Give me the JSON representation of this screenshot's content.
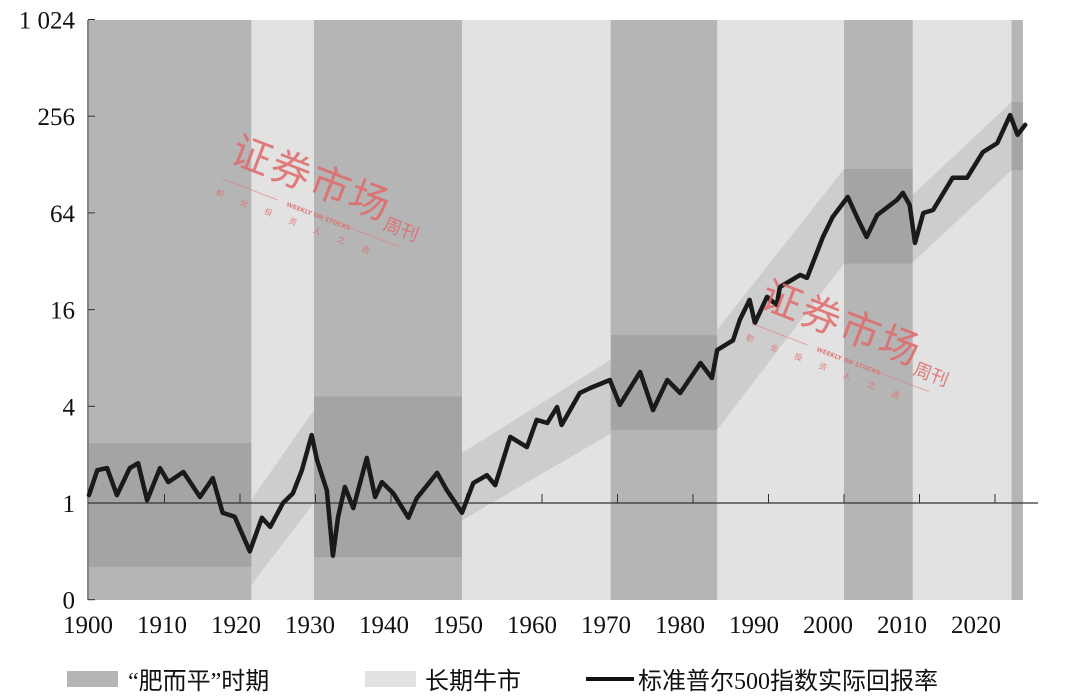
{
  "chart_data": {
    "type": "line",
    "y_scale": "log2",
    "xlim": [
      1900,
      2024
    ],
    "y_ticks": [
      {
        "value": 1024,
        "label": "1 024"
      },
      {
        "value": 256,
        "label": "256"
      },
      {
        "value": 64,
        "label": "64"
      },
      {
        "value": 16,
        "label": "16"
      },
      {
        "value": 4,
        "label": "4"
      },
      {
        "value": 1,
        "label": "1"
      },
      {
        "value": 0.25,
        "label": "0"
      }
    ],
    "x_ticks": [
      "1900",
      "1910",
      "1920",
      "1930",
      "1940",
      "1950",
      "1960",
      "1970",
      "1980",
      "1990",
      "2000",
      "2010",
      "2020"
    ],
    "reference_line": 1,
    "colors": {
      "fat_flat": "#b5b5b5",
      "bull": "#e2e2e2",
      "channel": "#000000",
      "line": "#1a1a1a",
      "watermark": "#e06a6a"
    },
    "fat_flat_periods": [
      [
        1900,
        1921.5
      ],
      [
        1929.8,
        1949.4
      ],
      [
        1969.1,
        1983.2
      ],
      [
        2000,
        2009.1
      ],
      [
        2022.2,
        2023.7
      ]
    ],
    "bull_periods": [
      [
        1921.5,
        1929.8
      ],
      [
        1949.4,
        1969.1
      ],
      [
        1983.2,
        2000
      ],
      [
        2009.1,
        2022.2
      ]
    ],
    "channels": [
      {
        "start": 1900,
        "end": 1921.5,
        "start_range": [
          0.4,
          2.36
        ],
        "end_range": [
          0.4,
          2.36
        ]
      },
      {
        "start": 1921.5,
        "end": 1929.8,
        "start_range": [
          0.31,
          1.05
        ],
        "end_range": [
          1.0,
          3.8
        ]
      },
      {
        "start": 1929.8,
        "end": 1949.4,
        "start_range": [
          0.46,
          4.6
        ],
        "end_range": [
          0.46,
          4.6
        ]
      },
      {
        "start": 1949.4,
        "end": 1969.1,
        "start_range": [
          0.78,
          2.05
        ],
        "end_range": [
          2.7,
          7.8
        ]
      },
      {
        "start": 1969.1,
        "end": 1983.2,
        "start_range": [
          2.85,
          11.1
        ],
        "end_range": [
          2.85,
          11.1
        ]
      },
      {
        "start": 1983.2,
        "end": 2000,
        "start_range": [
          2.85,
          12
        ],
        "end_range": [
          31,
          120
        ]
      },
      {
        "start": 2000,
        "end": 2009.1,
        "start_range": [
          31,
          120
        ],
        "end_range": [
          31,
          120
        ]
      },
      {
        "start": 2009.1,
        "end": 2022.2,
        "start_range": [
          31.5,
          83
        ],
        "end_range": [
          118,
          314
        ]
      },
      {
        "start": 2022.2,
        "end": 2023.7,
        "start_range": [
          118,
          314
        ],
        "end_range": [
          118,
          314
        ]
      }
    ],
    "series": [
      {
        "name": "标准普尔500指数实际回报率",
        "x": [
          1900,
          1901.1,
          1902.4,
          1903.7,
          1905.4,
          1906.5,
          1907.7,
          1909.4,
          1910.5,
          1912.5,
          1914.7,
          1916.4,
          1917.7,
          1919.3,
          1921.3,
          1922.9,
          1924.0,
          1925.7,
          1927.0,
          1928.2,
          1929.5,
          1930.2,
          1931.5,
          1932.3,
          1933.0,
          1933.9,
          1935.0,
          1936.8,
          1937.9,
          1938.8,
          1940.3,
          1942.3,
          1943.4,
          1946.1,
          1947.4,
          1949.4,
          1950.9,
          1952.7,
          1953.8,
          1955.8,
          1958.0,
          1959.3,
          1960.7,
          1962.0,
          1962.6,
          1965.0,
          1966.4,
          1969.0,
          1970.3,
          1973.0,
          1974.7,
          1976.6,
          1978.3,
          1981.0,
          1982.5,
          1983.2,
          1985.3,
          1986.2,
          1987.5,
          1988.2,
          1989.8,
          1991.1,
          1991.5,
          1994.2,
          1995.1,
          1997.2,
          1998.5,
          2000.5,
          2001.9,
          2003.0,
          2004.4,
          2007.0,
          2007.8,
          2008.7,
          2009.4,
          2010.5,
          2011.8,
          2014.4,
          2016.3,
          2018.4,
          2020.3,
          2022.0,
          2023.0,
          2024.0
        ],
        "y": [
          1.12,
          1.6,
          1.65,
          1.12,
          1.65,
          1.77,
          1.04,
          1.65,
          1.35,
          1.56,
          1.09,
          1.43,
          0.87,
          0.82,
          0.5,
          0.81,
          0.71,
          1.0,
          1.15,
          1.6,
          2.65,
          1.85,
          1.2,
          0.47,
          0.82,
          1.26,
          0.93,
          1.91,
          1.09,
          1.35,
          1.15,
          0.81,
          1.07,
          1.54,
          1.2,
          0.87,
          1.33,
          1.49,
          1.29,
          2.58,
          2.23,
          3.29,
          3.15,
          3.96,
          3.06,
          4.84,
          5.2,
          5.83,
          4.08,
          6.54,
          3.79,
          5.83,
          4.84,
          7.44,
          6.0,
          8.97,
          10.3,
          13.8,
          18.4,
          13.2,
          19.2,
          17.1,
          22.1,
          26.3,
          25.2,
          45.3,
          60.4,
          80.4,
          57.8,
          45.3,
          62.1,
          77.0,
          85.2,
          71.7,
          41.6,
          63.9,
          66.7,
          106,
          106,
          153,
          174,
          260,
          196,
          226
        ]
      }
    ],
    "legend": {
      "position": "bottom",
      "fat_flat": "“肥而平”时期",
      "bull": "长期牛市",
      "line": "标准普尔500指数实际回报率"
    }
  },
  "watermark": {
    "title": "证券市场",
    "suffix": "周刊",
    "english": "WEEKLY ON STOCKS",
    "slogan": "职业投资人之选"
  }
}
